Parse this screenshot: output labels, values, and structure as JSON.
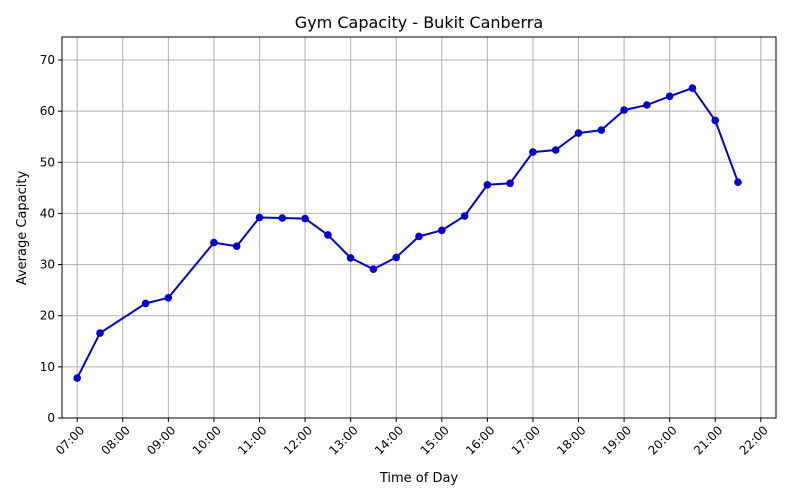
{
  "chart_data": {
    "type": "line",
    "title": "Gym Capacity - Bukit Canberra",
    "xlabel": "Time of Day",
    "ylabel": "Average Capacity",
    "x_tick_labels": [
      "07:00",
      "08:00",
      "09:00",
      "10:00",
      "11:00",
      "12:00",
      "13:00",
      "14:00",
      "15:00",
      "16:00",
      "17:00",
      "18:00",
      "19:00",
      "20:00",
      "21:00",
      "22:00"
    ],
    "y_ticks": [
      0,
      10,
      20,
      30,
      40,
      50,
      60,
      70
    ],
    "ylim": [
      0,
      74.5
    ],
    "xlim": [
      "06:40",
      "22:20"
    ],
    "grid": true,
    "series": [
      {
        "color": "#0000cc",
        "x": [
          "07:00",
          "07:30",
          "08:30",
          "09:00",
          "10:00",
          "10:30",
          "11:00",
          "11:30",
          "12:00",
          "12:30",
          "13:00",
          "13:30",
          "14:00",
          "14:30",
          "15:00",
          "15:30",
          "16:00",
          "16:30",
          "17:00",
          "17:30",
          "18:00",
          "18:30",
          "19:00",
          "19:30",
          "20:00",
          "20:30",
          "21:00",
          "21:30"
        ],
        "values": [
          7.8,
          16.6,
          22.4,
          23.5,
          34.3,
          33.6,
          39.2,
          39.1,
          39.0,
          35.8,
          31.3,
          29.1,
          31.4,
          35.5,
          36.7,
          39.5,
          45.6,
          45.9,
          52.0,
          52.4,
          55.7,
          56.3,
          60.2,
          61.2,
          62.9,
          64.5,
          58.2,
          46.1
        ]
      }
    ]
  }
}
